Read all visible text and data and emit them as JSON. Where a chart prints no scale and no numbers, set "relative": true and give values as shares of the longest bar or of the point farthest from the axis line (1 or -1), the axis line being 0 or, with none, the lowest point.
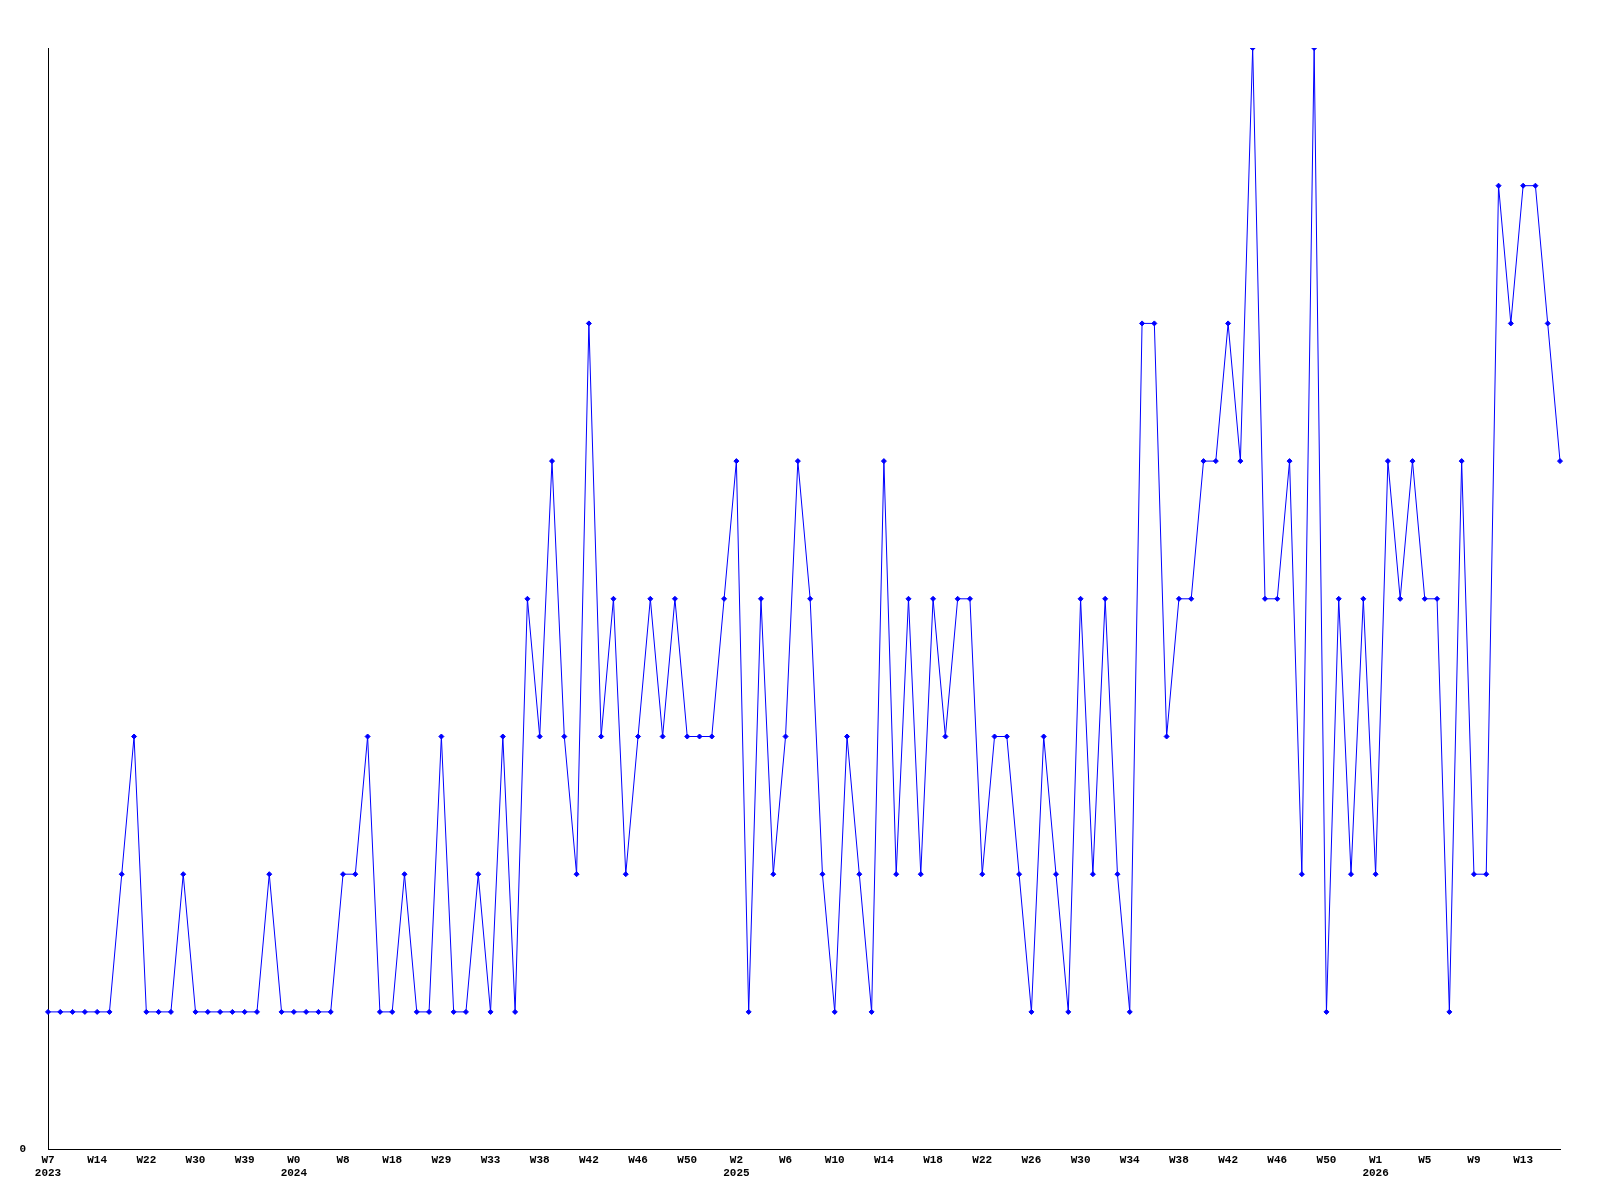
{
  "chart_data": {
    "type": "line",
    "relative": true,
    "marker": "diamond",
    "line_style": "solid",
    "grid": false,
    "legend": false,
    "annotations": [
      "0"
    ],
    "categories": [
      "W7\n2023",
      null,
      null,
      null,
      "W14",
      null,
      null,
      null,
      "W22",
      null,
      null,
      null,
      "W30",
      null,
      null,
      null,
      "W39",
      null,
      null,
      null,
      "W0\n2024",
      null,
      null,
      null,
      "W8",
      null,
      null,
      null,
      "W18",
      null,
      null,
      null,
      "W29",
      null,
      null,
      null,
      "W33",
      null,
      null,
      null,
      "W38",
      null,
      null,
      null,
      "W42",
      null,
      null,
      null,
      "W46",
      null,
      null,
      null,
      "W50",
      null,
      null,
      null,
      "W2\n2025",
      null,
      null,
      null,
      "W6",
      null,
      null,
      null,
      "W10",
      null,
      null,
      null,
      "W14",
      null,
      null,
      null,
      "W18",
      null,
      null,
      null,
      "W22",
      null,
      null,
      null,
      "W26",
      null,
      null,
      null,
      "W30",
      null,
      null,
      null,
      "W34",
      null,
      null,
      null,
      "W38",
      null,
      null,
      null,
      "W42",
      null,
      null,
      null,
      "W46",
      null,
      null,
      null,
      "W50",
      null,
      null,
      null,
      "W1\n2026",
      null,
      null,
      null,
      "W5",
      null,
      null,
      null,
      "W9",
      null,
      null,
      null,
      "W13",
      null,
      null,
      null
    ],
    "series": [
      {
        "color": "#0000ff",
        "values": [
          0.125,
          0.125,
          0.125,
          0.125,
          0.125,
          0.125,
          0.25,
          0.375,
          0.125,
          0.125,
          0.125,
          0.25,
          0.125,
          0.125,
          0.125,
          0.125,
          0.125,
          0.125,
          0.25,
          0.125,
          0.125,
          0.125,
          0.125,
          0.125,
          0.25,
          0.25,
          0.375,
          0.125,
          0.125,
          0.25,
          0.125,
          0.125,
          0.375,
          0.125,
          0.125,
          0.25,
          0.125,
          0.375,
          0.125,
          0.5,
          0.375,
          0.625,
          0.375,
          0.25,
          0.75,
          0.375,
          0.5,
          0.25,
          0.375,
          0.5,
          0.375,
          0.5,
          0.375,
          0.375,
          0.375,
          0.5,
          0.625,
          0.125,
          0.5,
          0.25,
          0.375,
          0.625,
          0.5,
          0.25,
          0.125,
          0.375,
          0.25,
          0.125,
          0.625,
          0.25,
          0.5,
          0.25,
          0.5,
          0.375,
          0.5,
          0.5,
          0.25,
          0.375,
          0.375,
          0.25,
          0.125,
          0.375,
          0.25,
          0.125,
          0.5,
          0.25,
          0.5,
          0.25,
          0.125,
          0.75,
          0.75,
          0.375,
          0.5,
          0.5,
          0.625,
          0.625,
          0.75,
          0.625,
          1,
          0.5,
          0.5,
          0.625,
          0.25,
          1,
          0.125,
          0.5,
          0.25,
          0.5,
          0.25,
          0.625,
          0.5,
          0.625,
          0.5,
          0.5,
          0.125,
          0.625,
          0.25,
          0.25,
          0.875,
          0.75,
          0.875,
          0.875,
          0.75,
          0.625
        ]
      }
    ]
  }
}
